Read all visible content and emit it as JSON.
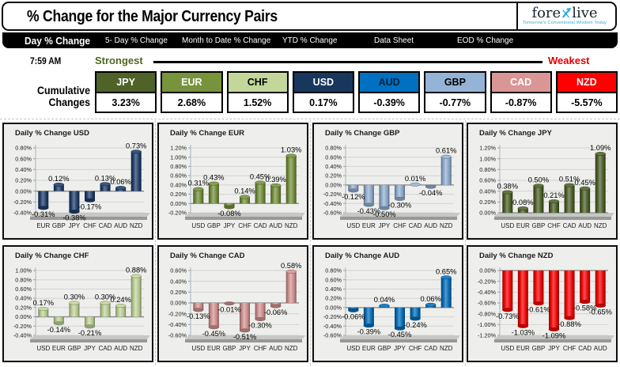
{
  "header": {
    "title": "% Change for the Major Currency Pairs",
    "logo": {
      "part1": "fore",
      "part2": "live",
      "tagline": "Tomorrow's Conventional Wisdom Today"
    }
  },
  "tabs": [
    {
      "label": "Day % Change",
      "active": true
    },
    {
      "label": "5- Day % Change",
      "active": false
    },
    {
      "label": "Month to Date % Change",
      "active": false
    },
    {
      "label": "YTD % Change",
      "active": false
    },
    {
      "label": "Data Sheet",
      "active": false
    },
    {
      "label": "EOD % Change",
      "active": false
    }
  ],
  "time": "7:59 AM",
  "scale": {
    "strongest": "Strongest",
    "weakest": "Weakest"
  },
  "cumulative": {
    "label_line1": "Cumulative",
    "label_line2": "Changes",
    "items": [
      {
        "code": "JPY",
        "value": "3.23%",
        "bg": "#4f6228",
        "fg": "#ffffff"
      },
      {
        "code": "EUR",
        "value": "2.68%",
        "bg": "#77933c",
        "fg": "#ffffff"
      },
      {
        "code": "CHF",
        "value": "1.52%",
        "bg": "#c4d79b",
        "fg": "#000000"
      },
      {
        "code": "USD",
        "value": "0.17%",
        "bg": "#17375d",
        "fg": "#ffffff"
      },
      {
        "code": "AUD",
        "value": "-0.39%",
        "bg": "#0070c0",
        "fg": "#06233c"
      },
      {
        "code": "GBP",
        "value": "-0.77%",
        "bg": "#95b3d7",
        "fg": "#000000"
      },
      {
        "code": "CAD",
        "value": "-0.87%",
        "bg": "#d99694",
        "fg": "#ffffff"
      },
      {
        "code": "NZD",
        "value": "-5.57%",
        "bg": "#fe0000",
        "fg": "#ffffff"
      }
    ]
  },
  "chart_data": [
    {
      "type": "bar",
      "id": "usd",
      "title": "Daily % Change USD",
      "bar_color": "#1f3f6e",
      "categories": [
        "EUR",
        "GBP",
        "JPY",
        "CHF",
        "CAD",
        "AUD",
        "NZD"
      ],
      "values": [
        -0.31,
        0.12,
        -0.38,
        -0.17,
        0.13,
        0.06,
        0.73
      ],
      "labels": [
        "-0.31%",
        "0.12%",
        "-0.38%",
        "-0.17%",
        "0.13%",
        "0.06%",
        "0.73%"
      ],
      "ylim": [
        -0.4,
        0.8
      ],
      "tick_step": 0.2,
      "grid": true
    },
    {
      "type": "bar",
      "id": "eur",
      "title": "Daily % Change EUR",
      "bar_color": "#77933c",
      "categories": [
        "USD",
        "GBP",
        "JPY",
        "CHF",
        "CAD",
        "AUD",
        "NZD"
      ],
      "values": [
        0.31,
        0.43,
        -0.08,
        0.14,
        0.45,
        0.39,
        1.03
      ],
      "labels": [
        "0.31%",
        "0.43%",
        "-0.08%",
        "0.14%",
        "0.45%",
        "0.39%",
        "1.03%"
      ],
      "ylim": [
        -0.2,
        1.2
      ],
      "tick_step": 0.2,
      "grid": true
    },
    {
      "type": "bar",
      "id": "gbp",
      "title": "Daily % Change GBP",
      "bar_color": "#95b3d7",
      "categories": [
        "USD",
        "EUR",
        "JPY",
        "CHF",
        "CAD",
        "AUD",
        "NZD"
      ],
      "values": [
        -0.12,
        -0.43,
        -0.5,
        -0.3,
        0.01,
        -0.04,
        0.61
      ],
      "labels": [
        "-0.12%",
        "-0.43%",
        "-0.50%",
        "-0.30%",
        "0.01%",
        "-0.04%",
        "0.61%"
      ],
      "ylim": [
        -0.6,
        0.8
      ],
      "tick_step": 0.2,
      "grid": true
    },
    {
      "type": "bar",
      "id": "jpy",
      "title": "Daily % Change JPY",
      "bar_color": "#4f6228",
      "categories": [
        "USD",
        "EUR",
        "GBP",
        "CHF",
        "CAD",
        "AUD",
        "NZD"
      ],
      "values": [
        0.38,
        0.08,
        0.5,
        0.21,
        0.51,
        0.45,
        1.09
      ],
      "labels": [
        "0.38%",
        "0.08%",
        "0.50%",
        "0.21%",
        "0.51%",
        "0.45%",
        "1.09%"
      ],
      "ylim": [
        0.0,
        1.2
      ],
      "tick_step": 0.2,
      "grid": true
    },
    {
      "type": "bar",
      "id": "chf",
      "title": "Daily % Change CHF",
      "bar_color": "#c4d79b",
      "categories": [
        "USD",
        "EUR",
        "GBP",
        "JPY",
        "CAD",
        "AUD",
        "NZD"
      ],
      "values": [
        0.17,
        -0.14,
        0.3,
        -0.21,
        0.3,
        0.24,
        0.88
      ],
      "labels": [
        "0.17%",
        "-0.14%",
        "0.30%",
        "-0.21%",
        "0.30%",
        "0.24%",
        "0.88%"
      ],
      "ylim": [
        -0.4,
        1.0
      ],
      "tick_step": 0.2,
      "grid": true
    },
    {
      "type": "bar",
      "id": "cad",
      "title": "Daily % Change CAD",
      "bar_color": "#d99694",
      "categories": [
        "USD",
        "EUR",
        "GBP",
        "JPY",
        "CHF",
        "AUD",
        "NZD"
      ],
      "values": [
        -0.13,
        -0.45,
        -0.01,
        -0.51,
        -0.3,
        -0.06,
        0.58
      ],
      "labels": [
        "-0.13%",
        "-0.45%",
        "-0.01%",
        "-0.51%",
        "-0.30%",
        "-0.06%",
        "0.58%"
      ],
      "ylim": [
        -0.6,
        0.6
      ],
      "tick_step": 0.2,
      "grid": true
    },
    {
      "type": "bar",
      "id": "aud",
      "title": "Daily % Change AUD",
      "bar_color": "#0070c0",
      "categories": [
        "USD",
        "EUR",
        "GBP",
        "JPY",
        "CHF",
        "CAD",
        "NZD"
      ],
      "values": [
        -0.06,
        -0.39,
        0.04,
        -0.45,
        -0.24,
        0.06,
        0.65
      ],
      "labels": [
        "-0.06%",
        "-0.39%",
        "0.04%",
        "-0.45%",
        "-0.24%",
        "0.06%",
        "0.65%"
      ],
      "ylim": [
        -0.6,
        0.8
      ],
      "tick_step": 0.2,
      "grid": true
    },
    {
      "type": "bar",
      "id": "nzd",
      "title": "Daily % Change NZD",
      "bar_color": "#fe0000",
      "categories": [
        "USD",
        "EUR",
        "GBP",
        "JPY",
        "CHF",
        "CAD",
        "AUD"
      ],
      "values": [
        -0.73,
        -1.03,
        -0.61,
        -1.09,
        -0.88,
        -0.58,
        -0.65
      ],
      "labels": [
        "-0.73%",
        "-1.03%",
        "-0.61%",
        "-1.09%",
        "-0.88%",
        "-0.58%",
        "-0.65%"
      ],
      "ylim": [
        -1.2,
        0.0
      ],
      "tick_step": 0.2,
      "grid": true
    }
  ]
}
